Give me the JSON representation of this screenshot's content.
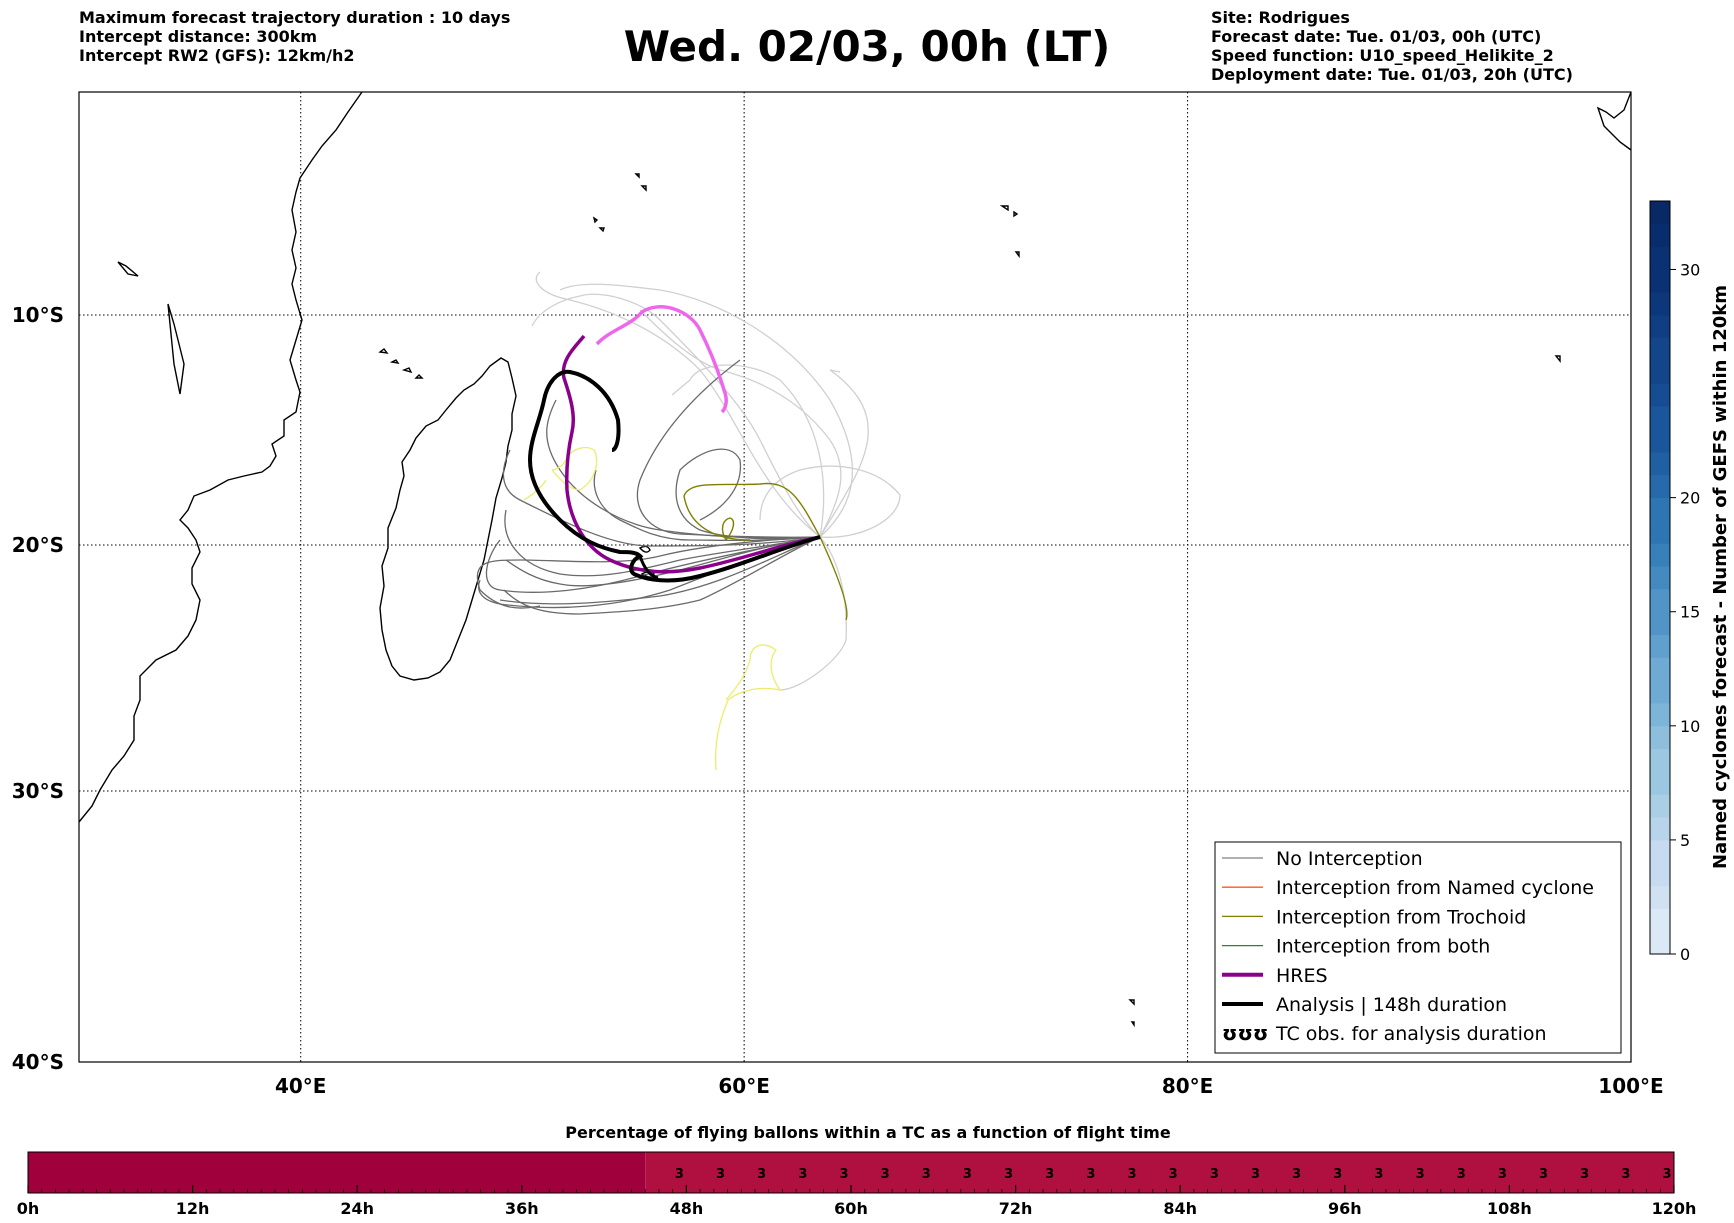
{
  "title": "Wed. 02/03, 00h (LT)",
  "header_left": [
    "Maximum forecast trajectory duration : 10 days",
    "Intercept distance: 300km",
    "Intercept RW2 (GFS):  12km/h2"
  ],
  "header_right": [
    "Site: Rodrigues",
    "Forecast date: Tue. 01/03, 00h (UTC)",
    "Speed function: U10_speed_Helikite_2",
    "Deployment date: Tue. 01/03, 20h (UTC)"
  ],
  "map": {
    "lon_labels": [
      "40°E",
      "60°E",
      "80°E",
      "100°E"
    ],
    "lat_labels": [
      "10°S",
      "20°S",
      "30°S",
      "40°S"
    ],
    "lon_range": [
      30,
      100
    ],
    "lat_range": [
      -40,
      0
    ]
  },
  "legend": [
    {
      "label": "No Interception",
      "color": "#808080",
      "symbol": "line"
    },
    {
      "label": "Interception from Named cyclone",
      "color": "#ff5a1e",
      "symbol": "line"
    },
    {
      "label": "Interception from Trochoid",
      "color": "#808000",
      "symbol": "line"
    },
    {
      "label": "Interception from both",
      "color": "#228b22",
      "symbol": "line"
    },
    {
      "label": "HRES",
      "color": "#8b008b",
      "symbol": "thick-line"
    },
    {
      "label": "Analysis | 148h duration",
      "color": "#000000",
      "symbol": "thick-line"
    },
    {
      "label": "TC obs. for analysis duration",
      "color": "#000000",
      "symbol": "cyclone-icon"
    }
  ],
  "colorbar": {
    "label": "Named cyclones forecast - Number of GEFS within 120km",
    "ticks": [
      "0",
      "5",
      "10",
      "15",
      "20",
      "30"
    ],
    "min": 0,
    "max": 33
  },
  "bottom_bar": {
    "title": "Percentage of flying ballons within a TC as a function of flight time",
    "hour_labels": [
      "0h",
      "12h",
      "24h",
      "36h",
      "48h",
      "60h",
      "72h",
      "84h",
      "96h",
      "108h",
      "120h"
    ],
    "cell_value": "3",
    "value_start_hour": 45,
    "color_low": "#a0003c",
    "color_high": "#b0103f"
  }
}
